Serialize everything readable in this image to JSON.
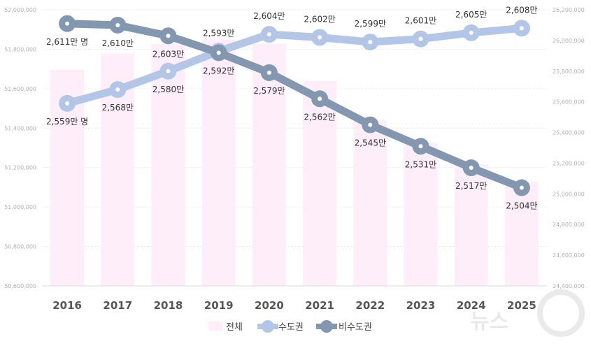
{
  "chart_data": {
    "type": "bar+line",
    "categories": [
      "2016",
      "2017",
      "2018",
      "2019",
      "2020",
      "2021",
      "2022",
      "2023",
      "2024",
      "2025"
    ],
    "left_axis": {
      "min": 50600000,
      "max": 52000000,
      "step": 200000,
      "tick_labels": [
        "50,600,000",
        "50,800,000",
        "51,000,000",
        "51,200,000",
        "51,400,000",
        "51,600,000",
        "51,800,000",
        "52,000,000"
      ]
    },
    "right_axis": {
      "min": 24400000,
      "max": 26200000,
      "step": 200000,
      "tick_labels": [
        "24,400,000",
        "24,600,000",
        "24,800,000",
        "25,000,000",
        "25,200,000",
        "25,400,000",
        "25,600,000",
        "25,800,000",
        "26,000,000",
        "26,200,000"
      ]
    },
    "grid": true,
    "legend_position": "bottom",
    "series": [
      {
        "name": "전체",
        "type": "bar",
        "axis": "left",
        "color": "#fdeefa",
        "values": [
          51696000,
          51779000,
          51826000,
          51850000,
          51829000,
          51639000,
          51439000,
          51325000,
          51217000,
          51128000
        ]
      },
      {
        "name": "수도권",
        "type": "line",
        "axis": "right",
        "color": "#b4c6e7",
        "values": [
          25590000,
          25680000,
          25800000,
          25930000,
          26040000,
          26020000,
          25990000,
          26010000,
          26050000,
          26080000
        ],
        "labels": [
          "2,559만 명",
          "2,568만",
          "2,580만",
          "2,593만",
          "2,604만",
          "2,602만",
          "2,599만",
          "2,601만",
          "2,605만",
          "2,608만"
        ],
        "label_side": [
          "below",
          "below",
          "below",
          "above",
          "above",
          "above",
          "above",
          "above",
          "above",
          "above"
        ]
      },
      {
        "name": "비수도권",
        "type": "line",
        "axis": "right",
        "color": "#8497b0",
        "values": [
          26110000,
          26100000,
          26030000,
          25920000,
          25790000,
          25620000,
          25450000,
          25310000,
          25170000,
          25040000
        ],
        "labels": [
          "2,611만 명",
          "2,610만",
          "2,603만",
          "2,592만",
          "2,579만",
          "2,562만",
          "2,545만",
          "2,531만",
          "2,517만",
          "2,504만"
        ],
        "label_side": [
          "below",
          "below",
          "below",
          "below",
          "below",
          "below",
          "below",
          "below",
          "below",
          "below"
        ]
      }
    ]
  },
  "watermark": "뉴스1"
}
